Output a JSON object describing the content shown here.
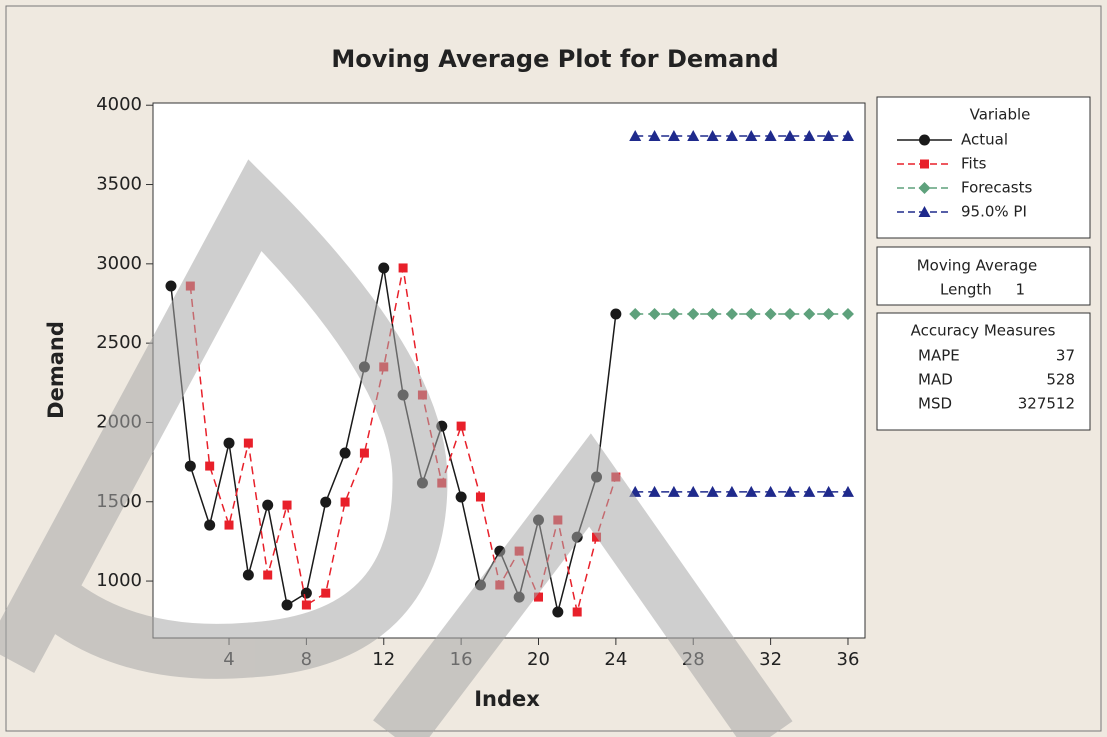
{
  "chart_data": {
    "type": "line",
    "title": "Moving Average Plot for Demand",
    "x_label": "Index",
    "y_label": "Demand",
    "xlim": [
      0.07,
      36.88
    ],
    "ylim": [
      641,
      4014
    ],
    "xticks": [
      4,
      8,
      12,
      16,
      20,
      24,
      28,
      32,
      36
    ],
    "yticks": [
      1000,
      1500,
      2000,
      2500,
      3000,
      3500,
      4000
    ],
    "legend_title": "Variable",
    "series": [
      {
        "name": "Actual",
        "color": "#1a1a1a",
        "dash": "solid",
        "marker": "circle",
        "x": [
          1,
          2,
          3,
          4,
          5,
          6,
          7,
          8,
          9,
          10,
          11,
          12,
          13,
          14,
          15,
          16,
          17,
          18,
          19,
          20,
          21,
          22,
          23,
          24
        ],
        "values": [
          2860,
          1725,
          1353,
          1870,
          1038,
          1479,
          849,
          924,
          1498,
          1807,
          2350,
          2974,
          2173,
          1618,
          1977,
          1530,
          975,
          1189,
          899,
          1385,
          805,
          1277,
          1656,
          2684
        ]
      },
      {
        "name": "Fits",
        "color": "#e8202a",
        "dash": "dashed",
        "marker": "square",
        "x": [
          2,
          3,
          4,
          5,
          6,
          7,
          8,
          9,
          10,
          11,
          12,
          13,
          14,
          15,
          16,
          17,
          18,
          19,
          20,
          21,
          22,
          23,
          24
        ],
        "values": [
          2860,
          1725,
          1353,
          1870,
          1038,
          1479,
          849,
          924,
          1498,
          1807,
          2350,
          2974,
          2173,
          1618,
          1977,
          1530,
          975,
          1189,
          899,
          1385,
          805,
          1277,
          1656
        ]
      },
      {
        "name": "Forecasts",
        "color": "#5ea17c",
        "dash": "dashed",
        "marker": "diamond",
        "x": [
          25,
          26,
          27,
          28,
          29,
          30,
          31,
          32,
          33,
          34,
          35,
          36
        ],
        "values": [
          2684,
          2684,
          2684,
          2684,
          2684,
          2684,
          2684,
          2684,
          2684,
          2684,
          2684,
          2684
        ]
      },
      {
        "name": "95.0% PI",
        "color": "#1f2a8c",
        "dash": "dashed",
        "marker": "triangle",
        "x": [
          25,
          26,
          27,
          28,
          29,
          30,
          31,
          32,
          33,
          34,
          35,
          36
        ],
        "values": [
          3806,
          3806,
          3806,
          3806,
          3806,
          3806,
          3806,
          3806,
          3806,
          3806,
          3806,
          3806
        ]
      },
      {
        "name": "95.0% PI",
        "color": "#1f2a8c",
        "dash": "dashed",
        "marker": "triangle",
        "legend": false,
        "x": [
          25,
          26,
          27,
          28,
          29,
          30,
          31,
          32,
          33,
          34,
          35,
          36
        ],
        "values": [
          1562,
          1562,
          1562,
          1562,
          1562,
          1562,
          1562,
          1562,
          1562,
          1562,
          1562,
          1562
        ]
      }
    ]
  },
  "info_boxes": {
    "moving_average": {
      "title": "Moving Average",
      "label": "Length",
      "value": 1
    },
    "accuracy": {
      "title": "Accuracy Measures",
      "rows": [
        [
          "MAPE",
          37
        ],
        [
          "MAD",
          528
        ],
        [
          "MSD",
          327512
        ]
      ]
    }
  }
}
